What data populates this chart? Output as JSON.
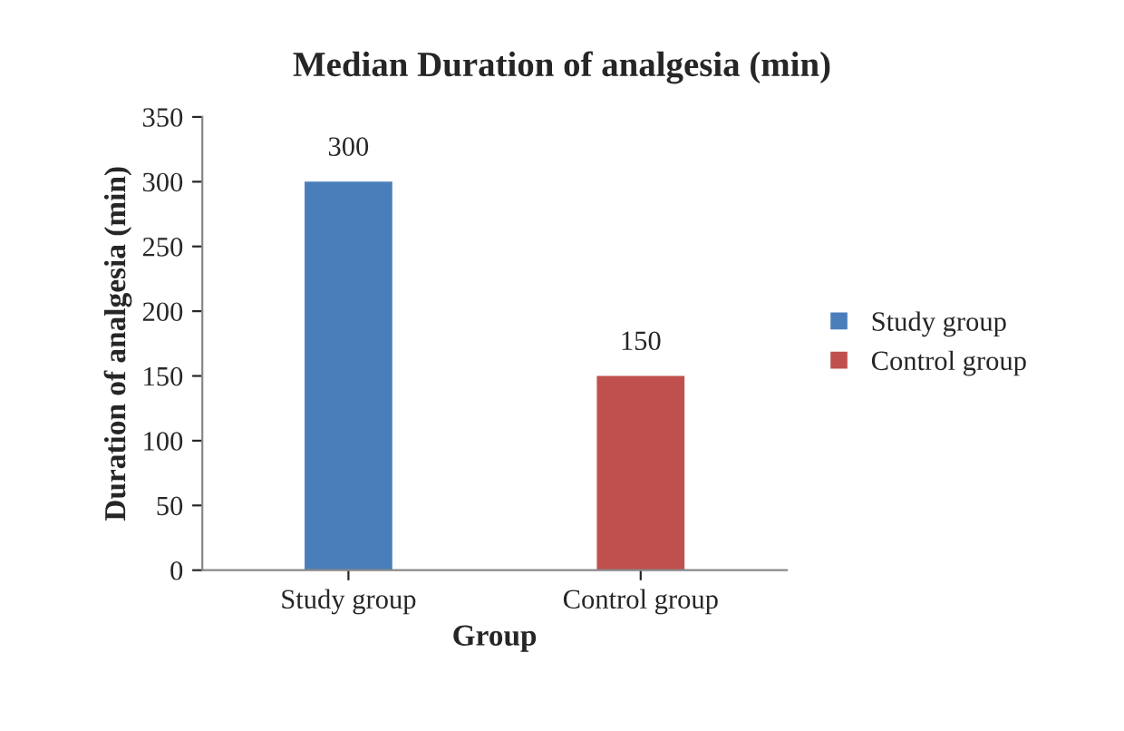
{
  "chart_data": {
    "type": "bar",
    "title": "Median Duration of analgesia (min)",
    "xlabel": "Group",
    "ylabel": "Duration of analgesia (min)",
    "categories": [
      "Study group",
      "Control group"
    ],
    "series": [
      {
        "name": "Study group",
        "color": "#4a7ebb",
        "values": [
          300,
          null
        ]
      },
      {
        "name": "Control group",
        "color": "#c0504d",
        "values": [
          null,
          150
        ]
      }
    ],
    "ylim": [
      0,
      350
    ],
    "yticks": [
      0,
      50,
      100,
      150,
      200,
      250,
      300,
      350
    ],
    "grid": false,
    "legend": "right",
    "data_labels": true
  }
}
